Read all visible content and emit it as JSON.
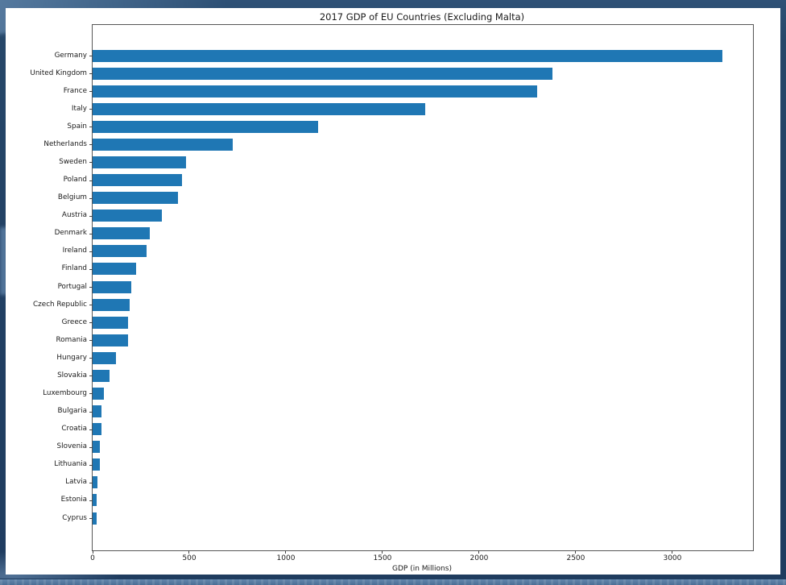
{
  "background": {
    "base_color": "#213f63",
    "accent_color": "#82a8ce",
    "bottom_band_color": "#4a6d94"
  },
  "figure": {
    "background_color": "#ffffff"
  },
  "chart_data": {
    "type": "bar",
    "orientation": "horizontal",
    "title": "2017 GDP of EU Countries (Excluding Malta)",
    "xlabel": "GDP (in Millions)",
    "ylabel": "",
    "categories": [
      "Germany",
      "United Kingdom",
      "France",
      "Italy",
      "Spain",
      "Netherlands",
      "Sweden",
      "Poland",
      "Belgium",
      "Austria",
      "Denmark",
      "Ireland",
      "Finland",
      "Portugal",
      "Czech Republic",
      "Greece",
      "Romania",
      "Hungary",
      "Slovakia",
      "Luxembourg",
      "Bulgaria",
      "Croatia",
      "Slovenia",
      "Lithuania",
      "Latvia",
      "Estonia",
      "Cyprus"
    ],
    "values": [
      3260,
      2380,
      2300,
      1720,
      1165,
      725,
      485,
      462,
      440,
      360,
      294,
      281,
      227,
      198,
      190,
      184,
      182,
      119,
      89,
      60,
      46,
      45,
      38,
      37,
      23,
      22,
      19
    ],
    "x_ticks": [
      0,
      500,
      1000,
      1500,
      2000,
      2500,
      3000
    ],
    "xlim": [
      0,
      3417
    ],
    "bar_color": "#1f77b4",
    "text_color": "#1a1a1a",
    "grid": false,
    "legend": false,
    "sorted": "descending"
  }
}
